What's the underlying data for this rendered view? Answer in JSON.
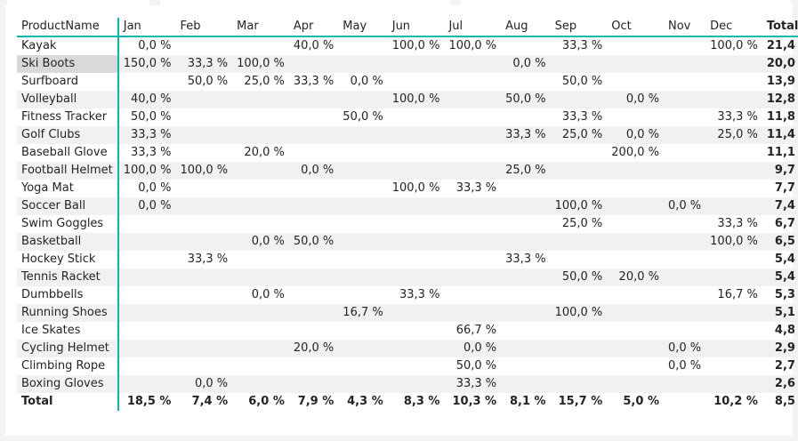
{
  "colors": {
    "accent": "#01b8aa",
    "stripe": "#f1f1f1",
    "selected": "#d9d9d9",
    "background": "#f3f3f3"
  },
  "matrix": {
    "columns": {
      "row_header": "ProductName",
      "months": [
        "Jan",
        "Feb",
        "Mar",
        "Apr",
        "May",
        "Jun",
        "Jul",
        "Aug",
        "Sep",
        "Oct",
        "Nov",
        "Dec"
      ],
      "total": "Total"
    },
    "sort_icon": "sort-descending-icon",
    "rows": [
      {
        "name": "Kayak",
        "values": [
          "0,0 %",
          "",
          "",
          "40,0 %",
          "",
          "100,0 %",
          "100,0 %",
          "",
          "33,3 %",
          "",
          "",
          "100,0 %"
        ],
        "total": "21,4 %"
      },
      {
        "name": "Ski Boots",
        "values": [
          "150,0 %",
          "33,3 %",
          "100,0 %",
          "",
          "",
          "",
          "",
          "0,0 %",
          "",
          "",
          "",
          ""
        ],
        "total": "20,0 %"
      },
      {
        "name": "Surfboard",
        "values": [
          "",
          "50,0 %",
          "25,0 %",
          "33,3 %",
          "0,0 %",
          "",
          "",
          "",
          "50,0 %",
          "",
          "",
          ""
        ],
        "total": "13,9 %"
      },
      {
        "name": "Volleyball",
        "values": [
          "40,0 %",
          "",
          "",
          "",
          "",
          "100,0 %",
          "",
          "50,0 %",
          "",
          "0,0 %",
          "",
          ""
        ],
        "total": "12,8 %"
      },
      {
        "name": "Fitness Tracker",
        "values": [
          "50,0 %",
          "",
          "",
          "",
          "50,0 %",
          "",
          "",
          "",
          "33,3 %",
          "",
          "",
          "33,3 %"
        ],
        "total": "11,8 %"
      },
      {
        "name": "Golf Clubs",
        "values": [
          "33,3 %",
          "",
          "",
          "",
          "",
          "",
          "",
          "33,3 %",
          "25,0 %",
          "0,0 %",
          "",
          "25,0 %"
        ],
        "total": "11,4 %"
      },
      {
        "name": "Baseball Glove",
        "values": [
          "33,3 %",
          "",
          "20,0 %",
          "",
          "",
          "",
          "",
          "",
          "",
          "200,0 %",
          "",
          ""
        ],
        "total": "11,1 %"
      },
      {
        "name": "Football Helmet",
        "values": [
          "100,0 %",
          "100,0 %",
          "",
          "0,0 %",
          "",
          "",
          "",
          "25,0 %",
          "",
          "",
          "",
          ""
        ],
        "total": "9,7 %"
      },
      {
        "name": "Yoga Mat",
        "values": [
          "0,0 %",
          "",
          "",
          "",
          "",
          "100,0 %",
          "33,3 %",
          "",
          "",
          "",
          "",
          ""
        ],
        "total": "7,7 %"
      },
      {
        "name": "Soccer Ball",
        "values": [
          "0,0 %",
          "",
          "",
          "",
          "",
          "",
          "",
          "",
          "100,0 %",
          "",
          "0,0 %",
          ""
        ],
        "total": "7,4 %"
      },
      {
        "name": "Swim Goggles",
        "values": [
          "",
          "",
          "",
          "",
          "",
          "",
          "",
          "",
          "25,0 %",
          "",
          "",
          "33,3 %"
        ],
        "total": "6,7 %"
      },
      {
        "name": "Basketball",
        "values": [
          "",
          "",
          "0,0 %",
          "50,0 %",
          "",
          "",
          "",
          "",
          "",
          "",
          "",
          "100,0 %"
        ],
        "total": "6,5 %"
      },
      {
        "name": "Hockey Stick",
        "values": [
          "",
          "33,3 %",
          "",
          "",
          "",
          "",
          "",
          "33,3 %",
          "",
          "",
          "",
          ""
        ],
        "total": "5,4 %"
      },
      {
        "name": "Tennis Racket",
        "values": [
          "",
          "",
          "",
          "",
          "",
          "",
          "",
          "",
          "50,0 %",
          "20,0 %",
          "",
          ""
        ],
        "total": "5,4 %"
      },
      {
        "name": "Dumbbells",
        "values": [
          "",
          "",
          "0,0 %",
          "",
          "",
          "33,3 %",
          "",
          "",
          "",
          "",
          "",
          "16,7 %"
        ],
        "total": "5,3 %"
      },
      {
        "name": "Running Shoes",
        "values": [
          "",
          "",
          "",
          "",
          "16,7 %",
          "",
          "",
          "",
          "100,0 %",
          "",
          "",
          ""
        ],
        "total": "5,1 %"
      },
      {
        "name": "Ice Skates",
        "values": [
          "",
          "",
          "",
          "",
          "",
          "",
          "66,7 %",
          "",
          "",
          "",
          "",
          ""
        ],
        "total": "4,8 %"
      },
      {
        "name": "Cycling Helmet",
        "values": [
          "",
          "",
          "",
          "20,0 %",
          "",
          "",
          "0,0 %",
          "",
          "",
          "",
          "0,0 %",
          ""
        ],
        "total": "2,9 %"
      },
      {
        "name": "Climbing Rope",
        "values": [
          "",
          "",
          "",
          "",
          "",
          "",
          "50,0 %",
          "",
          "",
          "",
          "0,0 %",
          ""
        ],
        "total": "2,7 %"
      },
      {
        "name": "Boxing Gloves",
        "values": [
          "",
          "0,0 %",
          "",
          "",
          "",
          "",
          "33,3 %",
          "",
          "",
          "",
          "",
          ""
        ],
        "total": "2,6 %"
      }
    ],
    "totals": {
      "label": "Total",
      "values": [
        "18,5 %",
        "7,4 %",
        "6,0 %",
        "7,9 %",
        "4,3 %",
        "8,3 %",
        "10,3 %",
        "8,1 %",
        "15,7 %",
        "5,0 %",
        "",
        "10,2 %"
      ],
      "total": "8,5 %"
    }
  }
}
